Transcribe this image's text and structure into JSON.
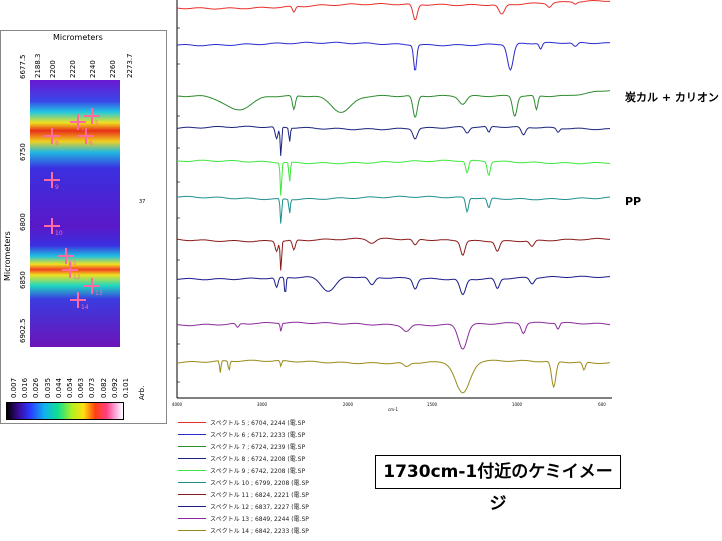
{
  "left_panel": {
    "top_axis_title": "Micrometers",
    "side_axis_title": "Micrometers",
    "x_ticks": [
      "2188.3",
      "2200",
      "2220",
      "2240",
      "2260",
      "2273.7"
    ],
    "y_ticks": [
      "6677.5",
      "6750",
      "6800",
      "6850",
      "6902.5"
    ],
    "colorbar_unit": "Arb.",
    "colorbar_ticks": [
      "0.007",
      "0.016",
      "0.026",
      "0.035",
      "0.044",
      "0.054",
      "0.063",
      "0.073",
      "0.082",
      "0.092",
      "0.101"
    ],
    "side_tick": "37",
    "markers": [
      "5",
      "7",
      "6",
      "8",
      "9",
      "10",
      "11",
      "12",
      "13",
      "14"
    ]
  },
  "annotations": {
    "calc_label": "炭カル + カリオン",
    "pp_label": "PP"
  },
  "caption": "1730cm-1付近のケミイメージ",
  "chart_data": {
    "type": "line",
    "title": "",
    "xlabel": "cm-1",
    "ylabel": "",
    "x_ticks": [
      "4000",
      "3000",
      "2000",
      "1500",
      "1000",
      "600"
    ],
    "xlim": [
      4000,
      600
    ],
    "grid": false,
    "legend_position": "bottom",
    "series": [
      {
        "name": "スペクトル 5 ; 6704, 2244 (電.SP",
        "color": "#e8302a"
      },
      {
        "name": "スペクトル 6 ; 6712, 2233 (電.SP",
        "color": "#2a2acf"
      },
      {
        "name": "スペクトル 7 ; 6724, 2239 (電.SP",
        "color": "#2e8b2e"
      },
      {
        "name": "スペクトル 8 ; 6724, 2208 (電.SP",
        "color": "#1a237e"
      },
      {
        "name": "スペクトル 9 ; 6742, 2208 (電.SP",
        "color": "#3ee83e"
      },
      {
        "name": "スペクトル 10 ; 6799, 2208 (電.SP",
        "color": "#1e8f8f"
      },
      {
        "name": "スペクトル 11 ; 6824, 2221 (電.SP",
        "color": "#8b1a1a"
      },
      {
        "name": "スペクトル 12 ; 6837, 2227 (電.SP",
        "color": "#1a1a8b"
      },
      {
        "name": "スペクトル 13 ; 6849, 2244 (電.SP",
        "color": "#8b2a9b"
      },
      {
        "name": "スペクトル 14 ; 6842, 2233 (電.SP",
        "color": "#9a8a1a"
      }
    ]
  }
}
